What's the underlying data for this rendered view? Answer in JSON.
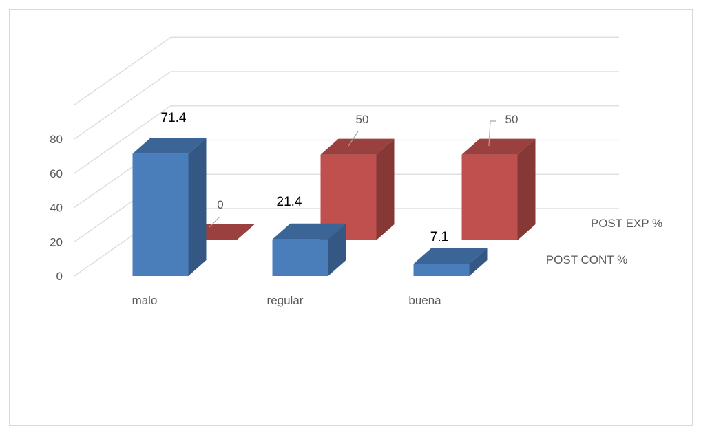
{
  "chart_data": {
    "type": "bar",
    "categories": [
      "malo",
      "regular",
      "buena"
    ],
    "series": [
      {
        "name": "POST CONT %",
        "values": [
          71.4,
          21.4,
          7.1
        ],
        "color": "#4a7ebb"
      },
      {
        "name": "POST EXP %",
        "values": [
          0,
          50,
          50
        ],
        "color": "#c0504d"
      }
    ],
    "data_labels": {
      "POST CONT %": [
        "71.4",
        "21.4",
        "7.1"
      ],
      "POST EXP %": [
        "0",
        "50",
        "50"
      ]
    },
    "y_ticks": [
      "0",
      "20",
      "40",
      "60",
      "80"
    ],
    "ylim": [
      0,
      80
    ],
    "grid": true,
    "view": "3d",
    "legend": "series labels on depth axis (right)"
  }
}
